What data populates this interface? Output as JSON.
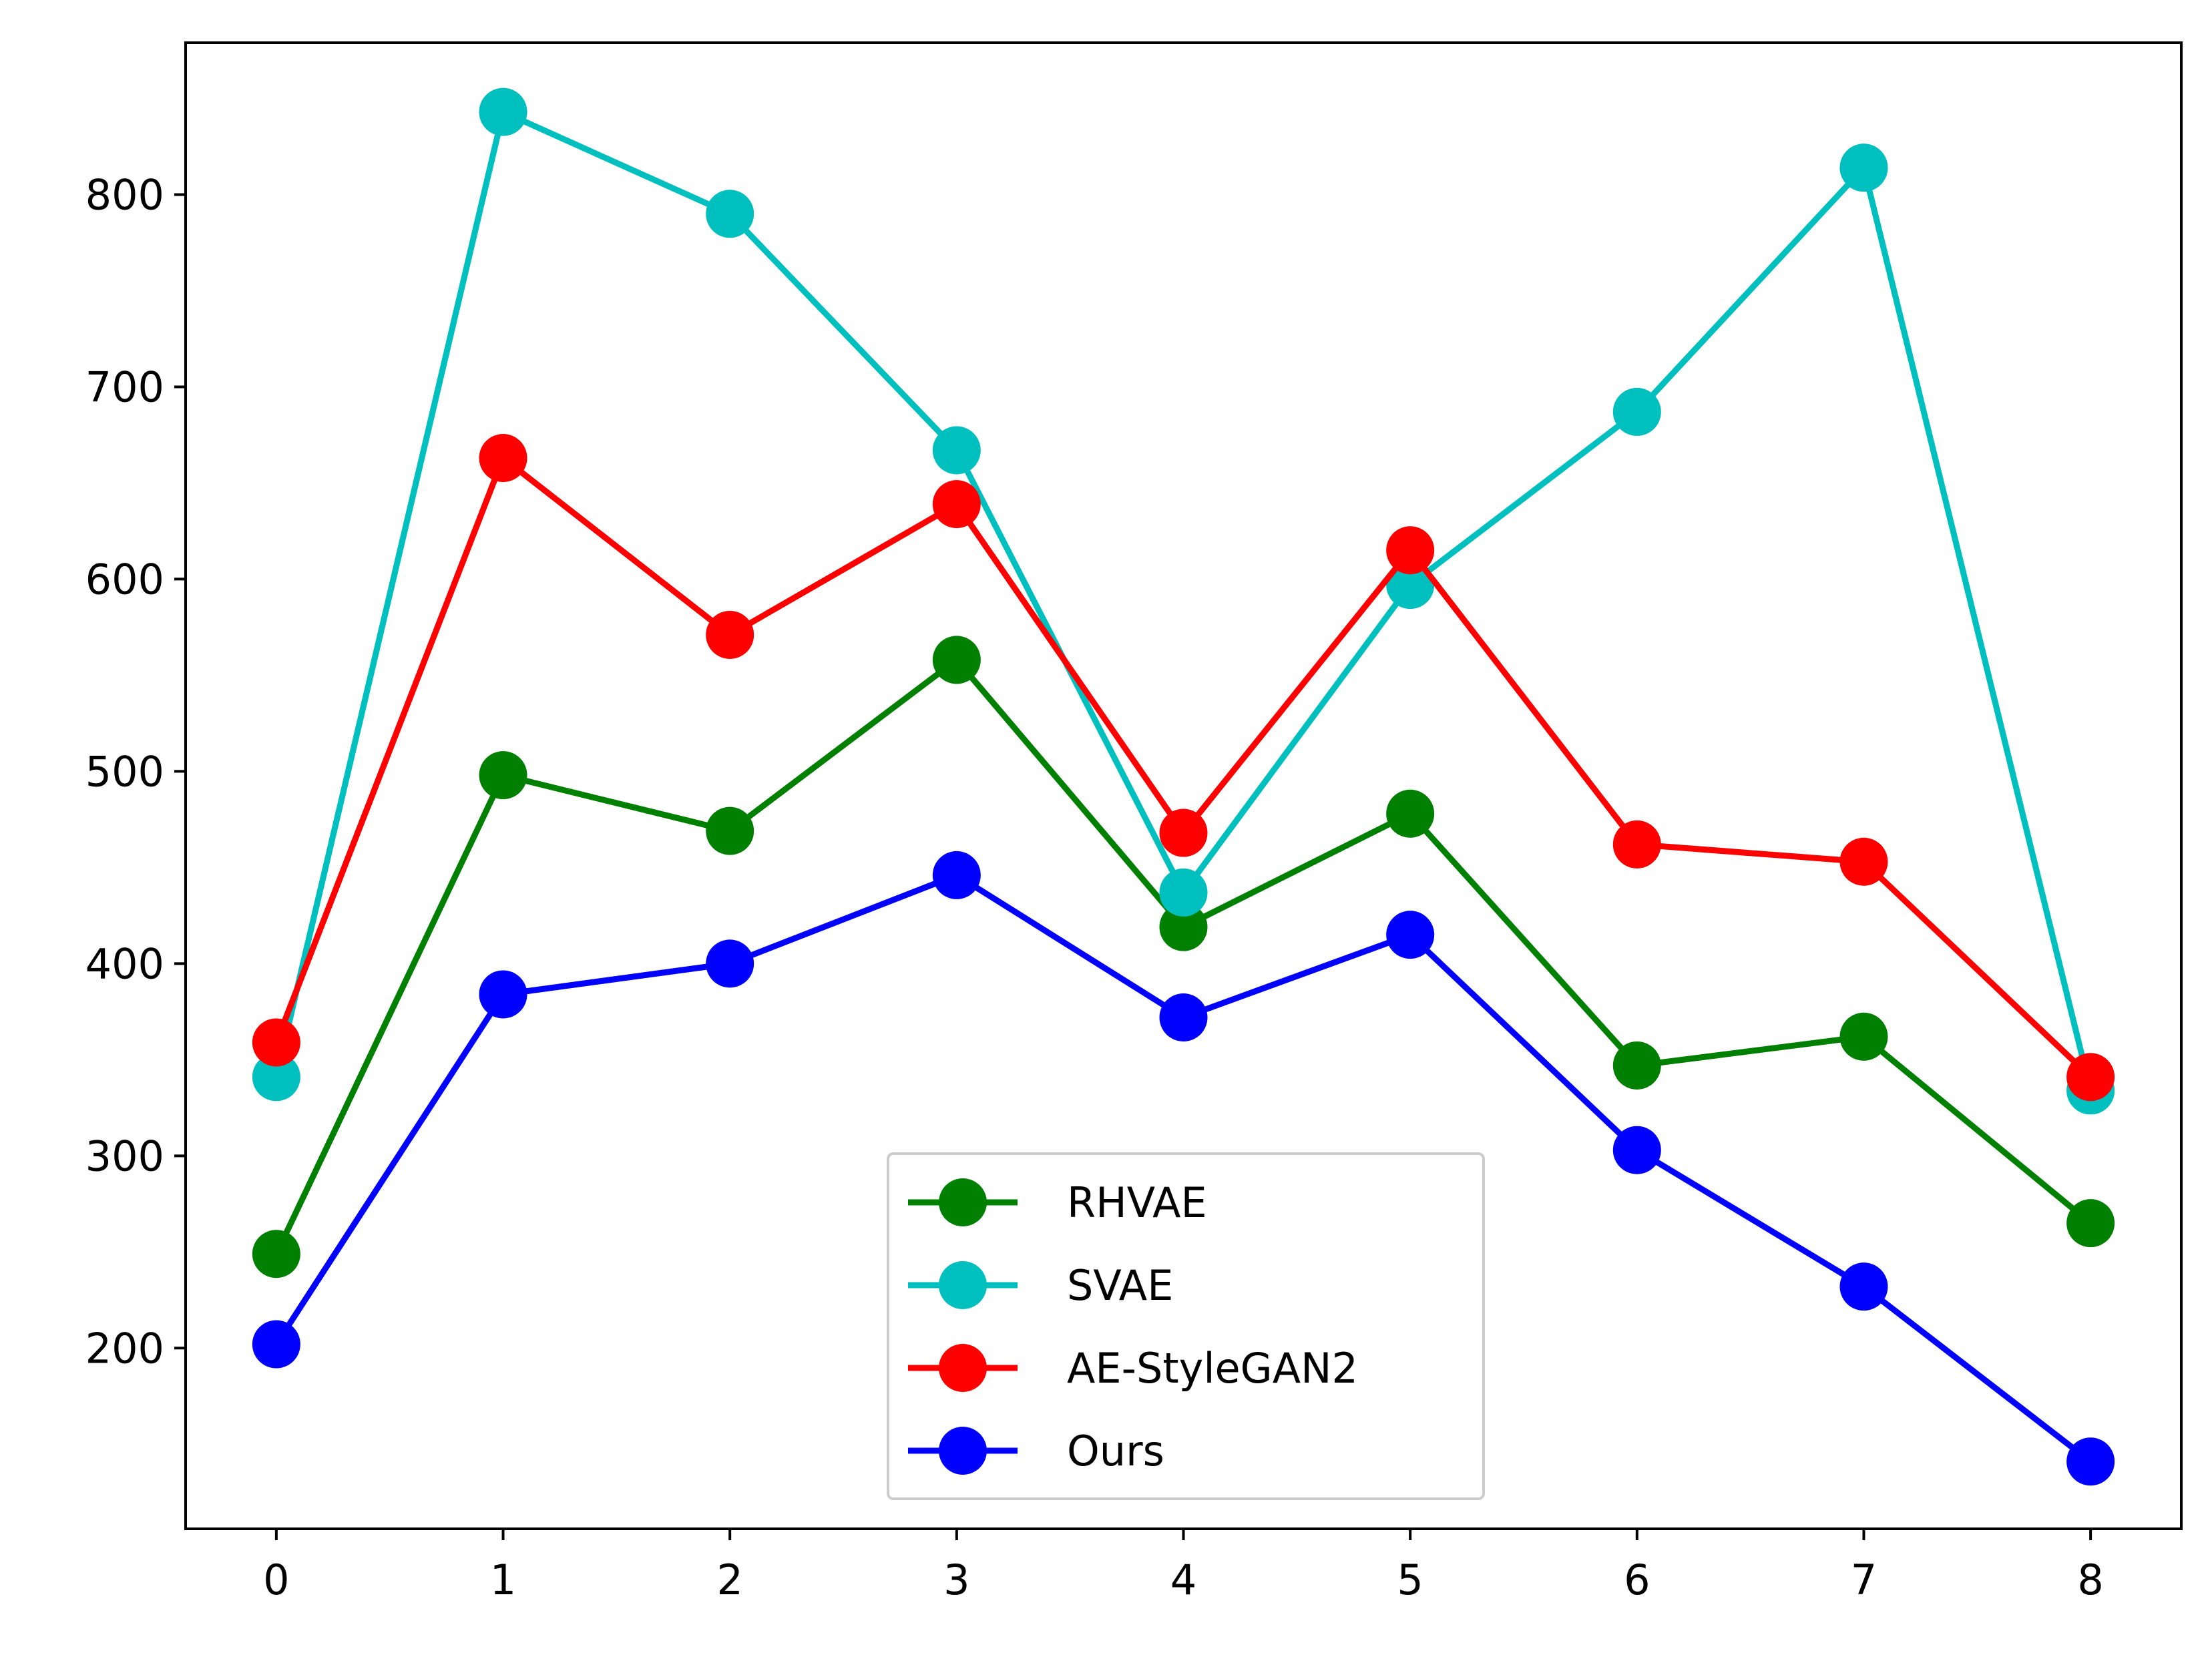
{
  "chart_data": {
    "type": "line",
    "title": "",
    "xlabel": "",
    "ylabel": "",
    "x": [
      0,
      1,
      2,
      3,
      4,
      5,
      6,
      7,
      8
    ],
    "xlim": [
      -0.4,
      8.4
    ],
    "ylim": [
      106,
      879
    ],
    "xticks": [
      "0",
      "1",
      "2",
      "3",
      "4",
      "5",
      "6",
      "7",
      "8"
    ],
    "yticks": [
      "200",
      "300",
      "400",
      "500",
      "600",
      "700",
      "800"
    ],
    "legend_position": "lower-center",
    "grid": false,
    "series": [
      {
        "name": "RHVAE",
        "color": "#008000",
        "values": [
          249,
          498,
          469,
          558,
          419,
          478,
          347,
          362,
          265
        ]
      },
      {
        "name": "SVAE",
        "color": "#00bfbf",
        "values": [
          341,
          843,
          790,
          667,
          437,
          597,
          687,
          814,
          334
        ]
      },
      {
        "name": "AE-StyleGAN2",
        "color": "#ff0000",
        "values": [
          359,
          663,
          571,
          639,
          468,
          615,
          462,
          453,
          341
        ]
      },
      {
        "name": "Ours",
        "color": "#0000ff",
        "values": [
          202,
          384,
          400,
          446,
          372,
          415,
          303,
          232,
          141
        ]
      }
    ]
  }
}
